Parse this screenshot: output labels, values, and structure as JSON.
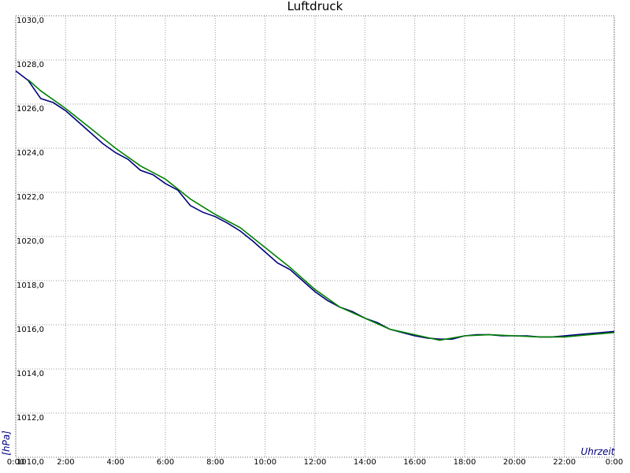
{
  "chart_data": {
    "type": "line",
    "title": "Luftdruck",
    "xlabel": "Uhrzeit",
    "ylabel": "[hPa]",
    "xlim": [
      0,
      24
    ],
    "xticks": [
      {
        "value": 0,
        "label": "0:00"
      },
      {
        "value": 2,
        "label": "2:00"
      },
      {
        "value": 4,
        "label": "4:00"
      },
      {
        "value": 6,
        "label": "6:00"
      },
      {
        "value": 8,
        "label": "8:00"
      },
      {
        "value": 10,
        "label": "10:00"
      },
      {
        "value": 12,
        "label": "12:00"
      },
      {
        "value": 14,
        "label": "14:00"
      },
      {
        "value": 16,
        "label": "16:00"
      },
      {
        "value": 18,
        "label": "18:00"
      },
      {
        "value": 20,
        "label": "20:00"
      },
      {
        "value": 22,
        "label": "22:00"
      },
      {
        "value": 24,
        "label": "0:00"
      }
    ],
    "ylim": [
      1010,
      1030
    ],
    "yticks": [
      {
        "value": 1010,
        "label": "1010,0"
      },
      {
        "value": 1012,
        "label": "1012,0"
      },
      {
        "value": 1014,
        "label": "1014,0"
      },
      {
        "value": 1016,
        "label": "1016,0"
      },
      {
        "value": 1018,
        "label": "1018,0"
      },
      {
        "value": 1020,
        "label": "1020,0"
      },
      {
        "value": 1022,
        "label": "1022,0"
      },
      {
        "value": 1024,
        "label": "1024,0"
      },
      {
        "value": 1026,
        "label": "1026,0"
      },
      {
        "value": 1028,
        "label": "1028,0"
      },
      {
        "value": 1030,
        "label": "1030,0"
      }
    ],
    "grid": true,
    "series": [
      {
        "color": "#000080",
        "x": [
          0,
          0.5,
          1,
          1.5,
          2,
          2.5,
          3,
          3.5,
          4,
          4.5,
          5,
          5.5,
          6,
          6.5,
          7,
          7.5,
          8,
          8.5,
          9,
          9.5,
          10,
          10.5,
          11,
          11.5,
          12,
          12.5,
          13,
          13.5,
          14,
          14.5,
          15,
          15.5,
          16,
          16.5,
          17,
          17.5,
          18,
          18.5,
          19,
          19.5,
          20,
          20.5,
          21,
          21.5,
          22,
          22.5,
          23,
          23.5,
          24
        ],
        "values": [
          1027.5,
          1027.07,
          1026.25,
          1026.07,
          1025.7,
          1025.2,
          1024.7,
          1024.2,
          1023.8,
          1023.5,
          1023.0,
          1022.8,
          1022.4,
          1022.1,
          1021.4,
          1021.1,
          1020.9,
          1020.6,
          1020.25,
          1019.8,
          1019.3,
          1018.8,
          1018.5,
          1018.0,
          1017.5,
          1017.1,
          1016.8,
          1016.6,
          1016.3,
          1016.1,
          1015.8,
          1015.65,
          1015.5,
          1015.4,
          1015.35,
          1015.35,
          1015.5,
          1015.55,
          1015.55,
          1015.5,
          1015.5,
          1015.5,
          1015.45,
          1015.45,
          1015.5,
          1015.55,
          1015.6,
          1015.65,
          1015.7
        ]
      },
      {
        "color": "#008000",
        "x": [
          0.5,
          1,
          2,
          3,
          4,
          5,
          6,
          7,
          8,
          9,
          10,
          11,
          12,
          13,
          14,
          15,
          16,
          17,
          18,
          19,
          20,
          21,
          22,
          23,
          24
        ],
        "values": [
          1027.1,
          1026.6,
          1025.8,
          1024.9,
          1024.0,
          1023.2,
          1022.6,
          1021.7,
          1021.0,
          1020.4,
          1019.5,
          1018.6,
          1017.6,
          1016.8,
          1016.3,
          1015.8,
          1015.55,
          1015.3,
          1015.5,
          1015.55,
          1015.5,
          1015.45,
          1015.45,
          1015.55,
          1015.65
        ]
      }
    ]
  }
}
